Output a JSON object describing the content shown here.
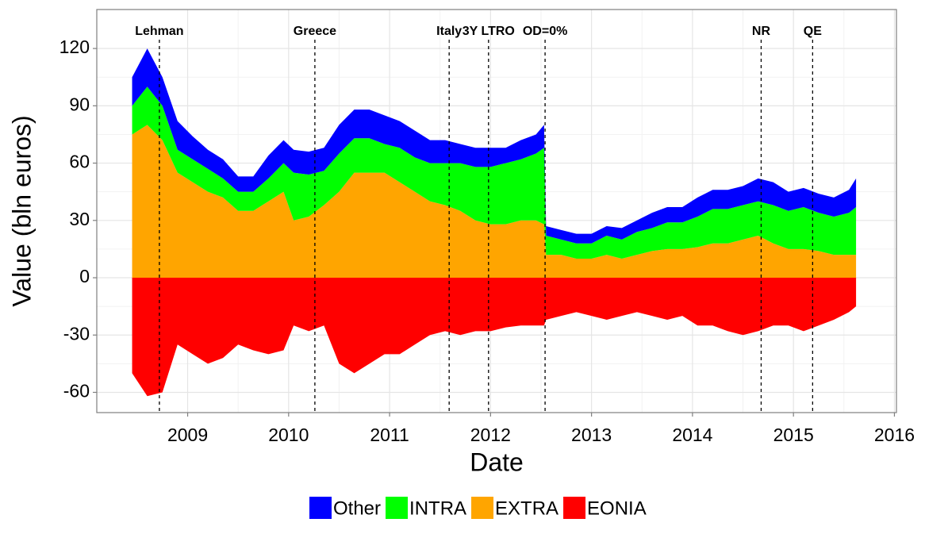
{
  "chart_data": {
    "type": "area",
    "stacked": true,
    "x_label": "Date",
    "y_label": "Value (bln euros)",
    "x": [
      2008.45,
      2008.6,
      2008.75,
      2008.9,
      2009.05,
      2009.2,
      2009.35,
      2009.5,
      2009.65,
      2009.8,
      2009.95,
      2010.05,
      2010.2,
      2010.35,
      2010.5,
      2010.65,
      2010.8,
      2010.95,
      2011.1,
      2011.25,
      2011.4,
      2011.55,
      2011.7,
      2011.85,
      2012.0,
      2012.15,
      2012.3,
      2012.45,
      2012.53,
      2012.55,
      2012.7,
      2012.85,
      2013.0,
      2013.15,
      2013.3,
      2013.45,
      2013.6,
      2013.75,
      2013.9,
      2014.05,
      2014.2,
      2014.35,
      2014.5,
      2014.65,
      2014.8,
      2014.95,
      2015.1,
      2015.25,
      2015.4,
      2015.55,
      2015.62
    ],
    "series": [
      {
        "name": "Other",
        "color": "#0000ff",
        "values": [
          15,
          20,
          15,
          15,
          12,
          10,
          10,
          8,
          8,
          12,
          12,
          12,
          12,
          12,
          15,
          15,
          15,
          15,
          14,
          14,
          12,
          12,
          10,
          10,
          10,
          8,
          10,
          10,
          12,
          5,
          5,
          5,
          5,
          5,
          6,
          6,
          8,
          8,
          8,
          10,
          10,
          10,
          10,
          12,
          12,
          10,
          10,
          10,
          10,
          12,
          15
        ]
      },
      {
        "name": "INTRA",
        "color": "#00ff00",
        "values": [
          15,
          20,
          18,
          12,
          12,
          12,
          10,
          10,
          10,
          12,
          15,
          25,
          22,
          18,
          20,
          18,
          18,
          15,
          18,
          18,
          20,
          22,
          25,
          28,
          30,
          32,
          32,
          35,
          40,
          10,
          8,
          8,
          8,
          10,
          10,
          12,
          12,
          14,
          14,
          16,
          18,
          18,
          18,
          18,
          20,
          20,
          22,
          20,
          20,
          22,
          25
        ]
      },
      {
        "name": "EXTRA",
        "color": "#ffa500",
        "values": [
          75,
          80,
          72,
          55,
          50,
          45,
          42,
          35,
          35,
          40,
          45,
          30,
          32,
          38,
          45,
          55,
          55,
          55,
          50,
          45,
          40,
          38,
          35,
          30,
          28,
          28,
          30,
          30,
          28,
          12,
          12,
          10,
          10,
          12,
          10,
          12,
          14,
          15,
          15,
          16,
          18,
          18,
          20,
          22,
          18,
          15,
          15,
          14,
          12,
          12,
          12
        ]
      },
      {
        "name": "EONIA",
        "color": "#ff0000",
        "values": [
          -50,
          -62,
          -60,
          -35,
          -40,
          -45,
          -42,
          -35,
          -38,
          -40,
          -38,
          -25,
          -28,
          -25,
          -45,
          -50,
          -45,
          -40,
          -40,
          -35,
          -30,
          -28,
          -30,
          -28,
          -28,
          -26,
          -25,
          -25,
          -25,
          -22,
          -20,
          -18,
          -20,
          -22,
          -20,
          -18,
          -20,
          -22,
          -20,
          -25,
          -25,
          -28,
          -30,
          -28,
          -25,
          -25,
          -28,
          -25,
          -22,
          -18,
          -15
        ]
      }
    ],
    "xlim": [
      2008.1,
      2016.02
    ],
    "xticks": [
      2009,
      2010,
      2011,
      2012,
      2013,
      2014,
      2015,
      2016
    ],
    "ylim": [
      -70.6,
      140.4
    ],
    "yticks": [
      -60,
      -30,
      0,
      30,
      60,
      90,
      120
    ],
    "grid": true,
    "legend_position": "bottom",
    "events": [
      {
        "x": 2008.72,
        "label": "Lehman"
      },
      {
        "x": 2010.26,
        "label": "Greece"
      },
      {
        "x": 2011.59,
        "label": "Italy"
      },
      {
        "x": 2011.98,
        "label": "3Y LTRO"
      },
      {
        "x": 2012.54,
        "label": "OD=0%"
      },
      {
        "x": 2014.68,
        "label": "NR"
      },
      {
        "x": 2015.19,
        "label": "QE"
      }
    ]
  }
}
